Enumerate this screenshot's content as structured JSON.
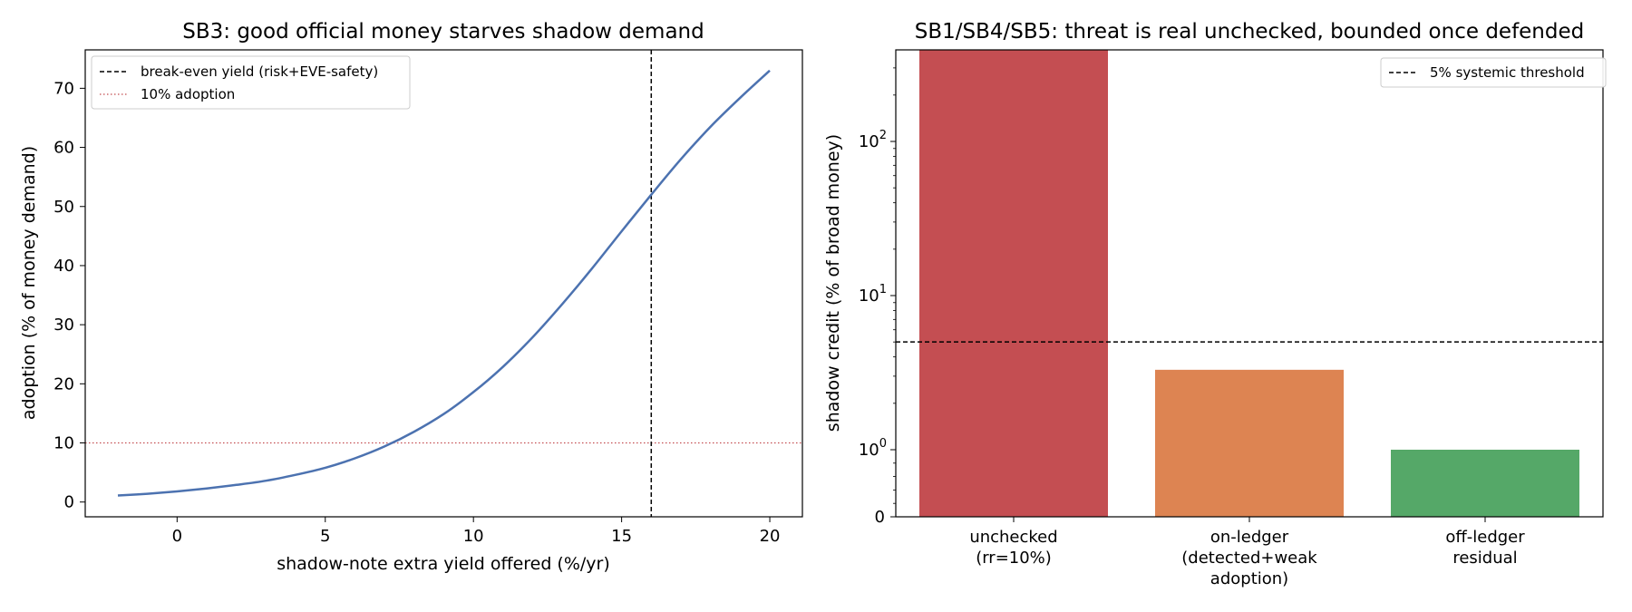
{
  "chart_data": [
    {
      "type": "line",
      "title": "SB3: good official money starves shadow demand",
      "xlabel": "shadow-note extra yield offered (%/yr)",
      "ylabel": "adoption (% of money demand)",
      "xlim": [
        -3.1,
        21.1
      ],
      "ylim": [
        -2.5,
        76.5
      ],
      "xticks": [
        0,
        5,
        10,
        15,
        20
      ],
      "yticks": [
        0,
        10,
        20,
        30,
        40,
        50,
        60,
        70
      ],
      "grid": false,
      "legend_position": "upper left",
      "series": [
        {
          "name": "",
          "color": "#4c72b0",
          "x": [
            -2,
            -1,
            0,
            1,
            2,
            3,
            4,
            5,
            6,
            7,
            8,
            9,
            10,
            11,
            12,
            13,
            14,
            15,
            16,
            17,
            18,
            19,
            20
          ],
          "y": [
            1.1,
            1.4,
            1.8,
            2.3,
            2.9,
            3.6,
            4.6,
            5.8,
            7.4,
            9.4,
            11.9,
            14.9,
            18.6,
            22.9,
            27.9,
            33.5,
            39.5,
            45.8,
            52.0,
            58.0,
            63.5,
            68.4,
            73.0
          ]
        }
      ],
      "reference_lines": [
        {
          "orientation": "vertical",
          "value": 16,
          "style": "dashed",
          "color": "#000000",
          "label": "break-even yield (risk+EVE-safety)"
        },
        {
          "orientation": "horizontal",
          "value": 10,
          "style": "dotted",
          "color": "#c44e52",
          "label": "10% adoption"
        }
      ]
    },
    {
      "type": "bar",
      "title": "SB1/SB4/SB5: threat is real unchecked, bounded once defended",
      "xlabel": "",
      "ylabel": "shadow credit (% of broad money)",
      "yscale": "symlog",
      "ylim": [
        0,
        650
      ],
      "ytick_labels": [
        "0",
        "10^0",
        "10^1",
        "10^2"
      ],
      "grid": false,
      "legend_position": "upper right",
      "categories": [
        "unchecked\n(rr=10%)",
        "on-ledger\n(detected+weak\nadoption)",
        "off-ledger\nresidual"
      ],
      "values": [
        650,
        3.3,
        1.0
      ],
      "colors": [
        "#c44e52",
        "#dd8452",
        "#55a868"
      ],
      "reference_lines": [
        {
          "orientation": "horizontal",
          "value": 5,
          "style": "dashed",
          "color": "#000000",
          "label": "5% systemic threshold"
        }
      ]
    }
  ]
}
